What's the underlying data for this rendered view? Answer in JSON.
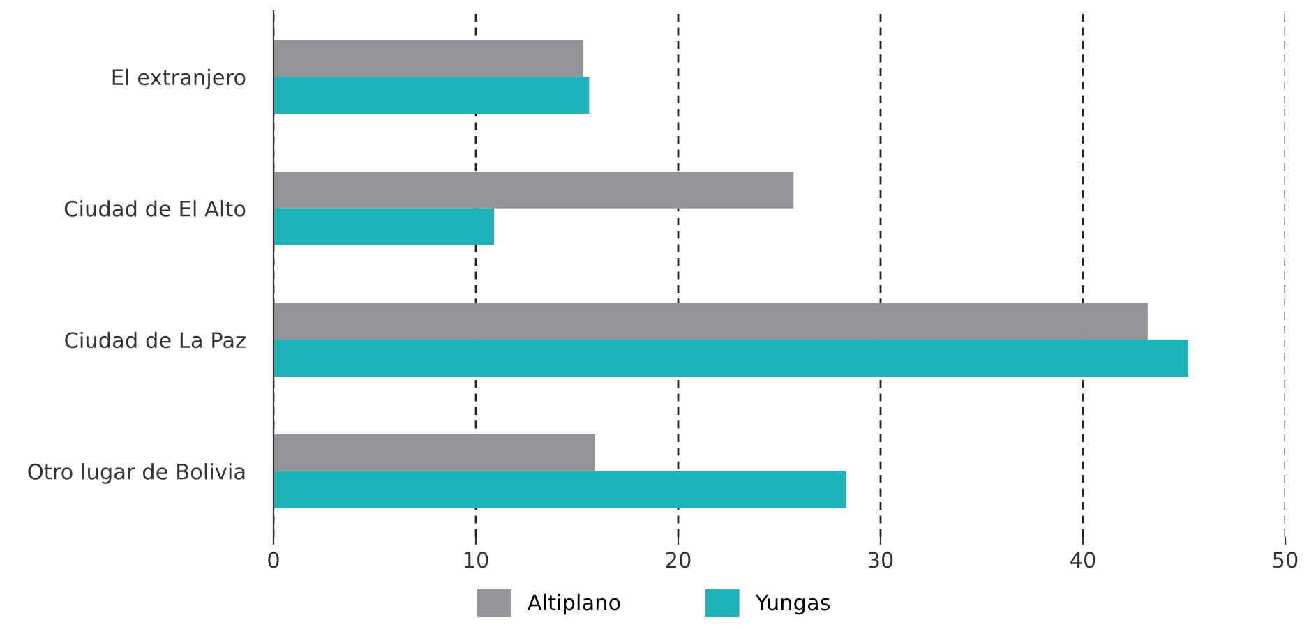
{
  "chart_data": {
    "type": "bar",
    "orientation": "horizontal",
    "categories": [
      "El extranjero",
      "Ciudad de El Alto",
      "Ciudad de La Paz",
      "Otro lugar de Bolivia"
    ],
    "series": [
      {
        "name": "Altiplano",
        "color": "#939598",
        "values": [
          15.3,
          25.7,
          43.2,
          15.9
        ]
      },
      {
        "name": "Yungas",
        "color": "#1db3b8",
        "values": [
          15.6,
          10.9,
          45.2,
          28.3
        ]
      }
    ],
    "xlim": [
      0,
      50
    ],
    "xticks": [
      0,
      10,
      20,
      30,
      40,
      50
    ],
    "grid": "x",
    "legend": "bottom"
  }
}
